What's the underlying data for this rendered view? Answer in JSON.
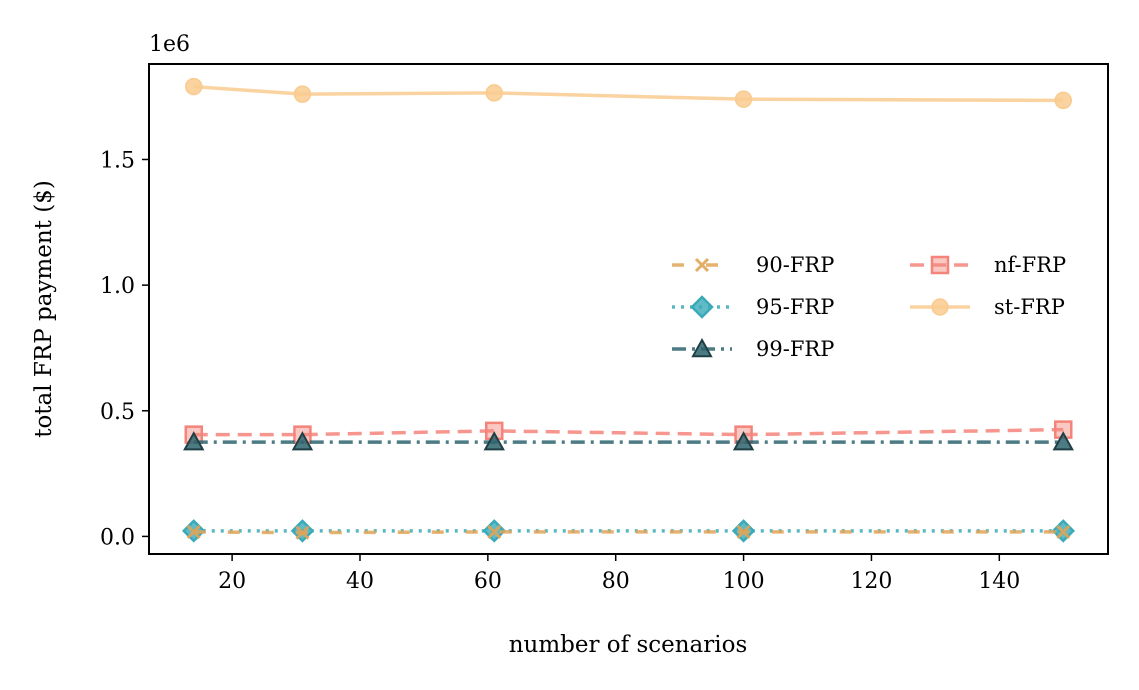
{
  "chart_data": {
    "type": "line",
    "title": "",
    "xlabel": "number of scenarios",
    "ylabel": "total FRP payment ($)",
    "y_offset_label": "1e6",
    "x": [
      14,
      31,
      61,
      100,
      150
    ],
    "xlim": [
      7,
      157
    ],
    "ylim": [
      -0.07,
      1.88
    ],
    "xticks": [
      20,
      40,
      60,
      80,
      100,
      120,
      140
    ],
    "xtick_labels": [
      "20",
      "40",
      "60",
      "80",
      "100",
      "120",
      "140"
    ],
    "yticks": [
      0.0,
      0.5,
      1.0,
      1.5
    ],
    "ytick_labels": [
      "0.0",
      "0.5",
      "1.0",
      "1.5"
    ],
    "grid": false,
    "legend_position": "center-right",
    "series": [
      {
        "name": "90-FRP",
        "key": "s90",
        "values": [
          0.018,
          0.015,
          0.018,
          0.018,
          0.018
        ],
        "color": "#E0A458",
        "dash": "12 22",
        "marker": "x"
      },
      {
        "name": "95-FRP",
        "key": "s95",
        "values": [
          0.022,
          0.022,
          0.022,
          0.022,
          0.022
        ],
        "color": "#3AAAB8",
        "dash": "3 6",
        "marker": "diamond"
      },
      {
        "name": "99-FRP",
        "key": "s99",
        "values": [
          0.375,
          0.375,
          0.375,
          0.375,
          0.375
        ],
        "color": "#2E646E",
        "dash": "14 6 3 6",
        "marker": "triangle"
      },
      {
        "name": "nf-FRP",
        "key": "snf",
        "values": [
          0.405,
          0.405,
          0.42,
          0.405,
          0.425
        ],
        "color": "#F4847A",
        "dash": "14 8",
        "marker": "square"
      },
      {
        "name": "st-FRP",
        "key": "sst",
        "values": [
          1.79,
          1.76,
          1.765,
          1.74,
          1.735
        ],
        "color": "#F9CB8F",
        "dash": "",
        "marker": "circle"
      }
    ]
  }
}
